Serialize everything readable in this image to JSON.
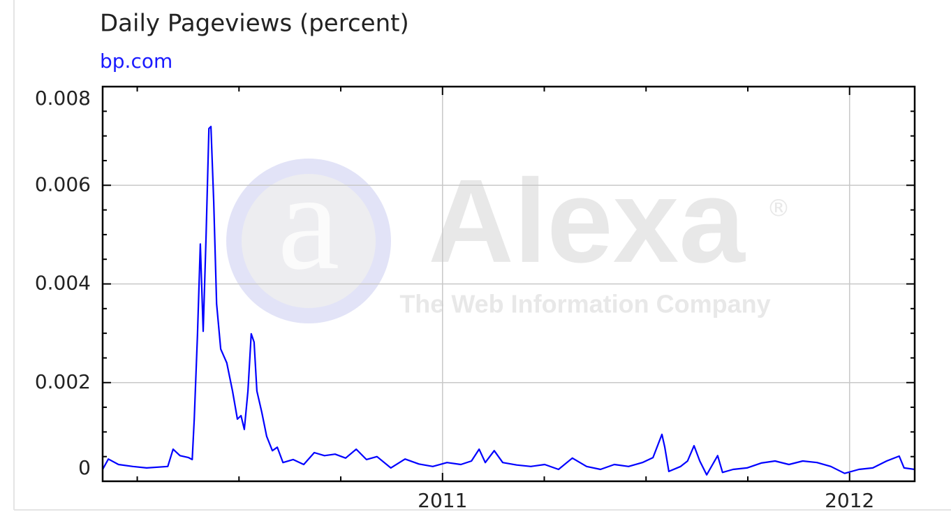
{
  "chart_data": {
    "type": "line",
    "title": "Daily Pageviews (percent)",
    "subtitle": "bp.com",
    "watermark": {
      "logo": "a",
      "text": "Alexa",
      "mark": "®",
      "tagline": "The Web Information Company"
    },
    "x": [
      2010.165,
      2010.179,
      2010.204,
      2010.239,
      2010.273,
      2010.325,
      2010.338,
      2010.355,
      2010.376,
      2010.385,
      2010.39,
      2010.398,
      2010.405,
      2010.412,
      2010.419,
      2010.426,
      2010.431,
      2010.438,
      2010.445,
      2010.455,
      2010.47,
      2010.484,
      2010.496,
      2010.505,
      2010.513,
      2010.522,
      2010.53,
      2010.537,
      2010.544,
      2010.556,
      2010.568,
      2010.582,
      2010.594,
      2010.608,
      2010.633,
      2010.659,
      2010.685,
      2010.71,
      2010.736,
      2010.762,
      2010.788,
      2010.813,
      2010.839,
      2010.873,
      2010.908,
      2010.942,
      2010.976,
      2011.011,
      2011.045,
      2011.071,
      2011.09,
      2011.105,
      2011.127,
      2011.148,
      2011.182,
      2011.217,
      2011.251,
      2011.285,
      2011.319,
      2011.354,
      2011.388,
      2011.422,
      2011.457,
      2011.491,
      2011.517,
      2011.539,
      2011.546,
      2011.556,
      2011.585,
      2011.602,
      2011.618,
      2011.632,
      2011.649,
      2011.676,
      2011.688,
      2011.714,
      2011.748,
      2011.783,
      2011.817,
      2011.851,
      2011.885,
      2011.92,
      2011.954,
      2011.988,
      2012.023,
      2012.057,
      2012.091,
      2012.122,
      2012.134,
      2012.16
    ],
    "series": [
      {
        "color": "#0000ff",
        "values": [
          0.00024,
          0.00045,
          0.00034,
          0.0003,
          0.00027,
          0.0003,
          0.00065,
          0.00052,
          0.00048,
          0.00044,
          0.00126,
          0.00296,
          0.00481,
          0.00304,
          0.00495,
          0.00715,
          0.00719,
          0.00566,
          0.0036,
          0.00268,
          0.0024,
          0.00183,
          0.00126,
          0.00133,
          0.00105,
          0.00183,
          0.00299,
          0.00282,
          0.00183,
          0.0014,
          0.00091,
          0.00062,
          0.00069,
          0.00038,
          0.00044,
          0.00034,
          0.00058,
          0.00052,
          0.00055,
          0.00047,
          0.00065,
          0.00044,
          0.0005,
          0.00027,
          0.00045,
          0.00035,
          0.0003,
          0.00038,
          0.00034,
          0.00041,
          0.00065,
          0.00038,
          0.00062,
          0.00038,
          0.00033,
          0.0003,
          0.00034,
          0.00024,
          0.00047,
          0.0003,
          0.00024,
          0.00034,
          0.0003,
          0.00038,
          0.00048,
          0.00095,
          0.00069,
          0.0002,
          0.0003,
          0.00041,
          0.00072,
          0.00041,
          0.00013,
          0.00052,
          0.00018,
          0.00024,
          0.00027,
          0.00037,
          0.00041,
          0.00034,
          0.00041,
          0.00038,
          0.0003,
          0.00016,
          0.00024,
          0.00027,
          0.00041,
          0.00051,
          0.00027,
          0.00024
        ]
      }
    ],
    "xlim": [
      2010.165,
      2012.16
    ],
    "xticks": [
      2011,
      2012
    ],
    "x_minor_ticks": [
      2010.25,
      2010.5,
      2010.75,
      2011.25,
      2011.5,
      2011.75
    ],
    "ylim": [
      0,
      0.008
    ],
    "yticks": [
      0,
      0.002,
      0.004,
      0.006,
      0.008
    ],
    "y_minor_ticks": [
      0.0005,
      0.001,
      0.0015,
      0.0025,
      0.003,
      0.0035,
      0.0045,
      0.005,
      0.0055,
      0.0065,
      0.007,
      0.0075
    ],
    "grid": true
  }
}
